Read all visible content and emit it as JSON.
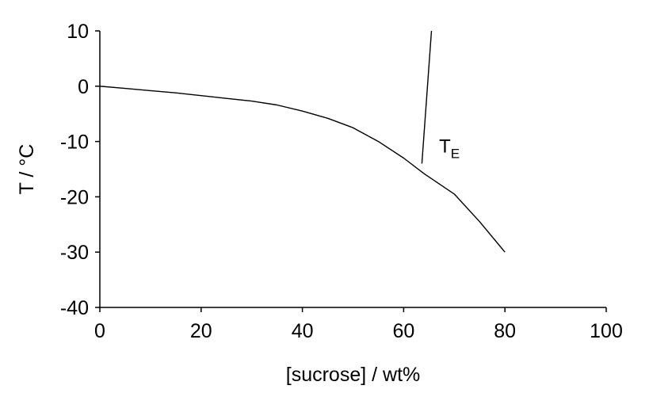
{
  "chart_data": {
    "type": "line",
    "title": "",
    "xlabel": "[sucrose] / wt%",
    "ylabel": "T / °C",
    "xlim": [
      0,
      100
    ],
    "ylim": [
      -40,
      10
    ],
    "xticks": [
      "0",
      "20",
      "40",
      "60",
      "80",
      "100"
    ],
    "yticks": [
      "10",
      "0",
      "-10",
      "-20",
      "-30",
      "-40"
    ],
    "grid": false,
    "series": [
      {
        "x": [
          0,
          5,
          10,
          15,
          20,
          25,
          30,
          35,
          40,
          45,
          50,
          55,
          60,
          64,
          70,
          75,
          80
        ],
        "y": [
          0,
          -0.4,
          -0.8,
          -1.2,
          -1.7,
          -2.2,
          -2.7,
          -3.4,
          -4.5,
          -5.8,
          -7.5,
          -10,
          -13,
          -15.8,
          -19.5,
          -24.5,
          -30
        ]
      },
      {
        "x": [
          63.6,
          65.5
        ],
        "y": [
          -14,
          10
        ]
      }
    ],
    "annotations": [
      {
        "text": "T",
        "subscript": "E",
        "x": 67,
        "y": -12
      }
    ]
  }
}
